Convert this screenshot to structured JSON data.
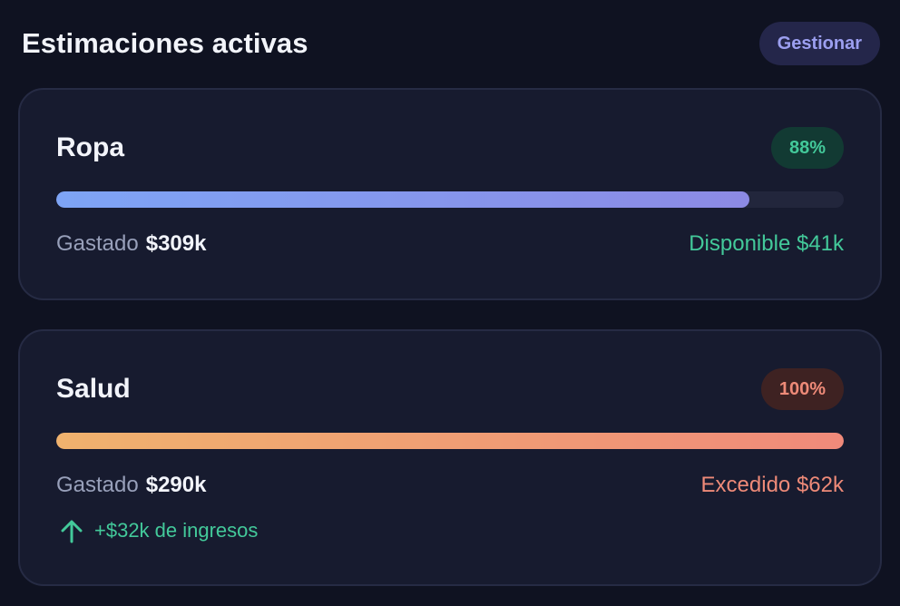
{
  "header": {
    "title": "Estimaciones activas",
    "manage_label": "Gestionar"
  },
  "estimates": [
    {
      "name": "Ropa",
      "percent_label": "88%",
      "progress": 0.88,
      "spent_label": "Gastado",
      "spent_value": "$309k",
      "remaining_text": "Disponible $41k",
      "status": "ok"
    },
    {
      "name": "Salud",
      "percent_label": "100%",
      "progress": 1.0,
      "spent_label": "Gastado",
      "spent_value": "$290k",
      "remaining_text": "Excedido $62k",
      "status": "exceeded",
      "income_note": "+$32k de ingresos",
      "income_icon": "arrow-up-icon"
    }
  ],
  "colors": {
    "background": "#0f1221",
    "card": "#171b2f",
    "ok_green": "#43c99a",
    "over_red": "#ee8a78",
    "accent_purple": "#9c9ff0"
  }
}
